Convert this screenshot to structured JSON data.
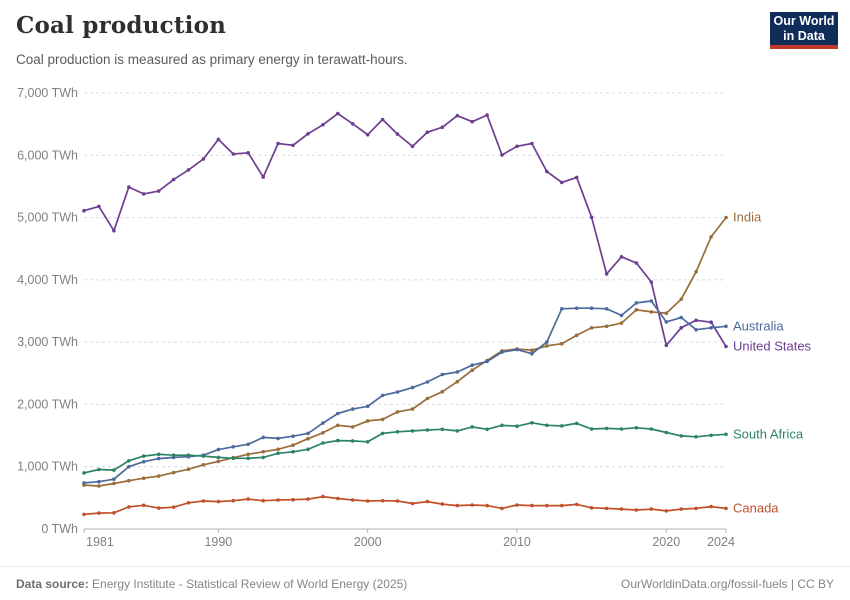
{
  "header": {
    "title": "Coal production",
    "subtitle": "Coal production is measured as primary energy in terawatt-hours."
  },
  "logo": {
    "line1": "Our World",
    "line2": "in Data"
  },
  "footer": {
    "source_label": "Data source:",
    "source_text": " Energy Institute - Statistical Review of World Energy (2025)",
    "right_text": "OurWorldinData.org/fossil-fuels | CC BY"
  },
  "chart_data": {
    "type": "line",
    "title": "Coal production",
    "unit": "TWh",
    "xlabel": "",
    "ylabel": "",
    "ylim": [
      0,
      7000
    ],
    "xlim": [
      1981,
      2024
    ],
    "grid": "horizontal-dashed",
    "legend_position": "right-end-labels",
    "x": [
      1981,
      1982,
      1983,
      1984,
      1985,
      1986,
      1987,
      1988,
      1989,
      1990,
      1991,
      1992,
      1993,
      1994,
      1995,
      1996,
      1997,
      1998,
      1999,
      2000,
      2001,
      2002,
      2003,
      2004,
      2005,
      2006,
      2007,
      2008,
      2009,
      2010,
      2011,
      2012,
      2013,
      2014,
      2015,
      2016,
      2017,
      2018,
      2019,
      2020,
      2021,
      2022,
      2023,
      2024
    ],
    "x_ticks": [
      {
        "value": 1981,
        "label": "1981"
      },
      {
        "value": 1990,
        "label": "1990"
      },
      {
        "value": 2000,
        "label": "2000"
      },
      {
        "value": 2010,
        "label": "2010"
      },
      {
        "value": 2020,
        "label": "2020"
      },
      {
        "value": 2024,
        "label": "2024"
      }
    ],
    "y_ticks": [
      {
        "value": 0,
        "label": "0 TWh"
      },
      {
        "value": 1000,
        "label": "1,000 TWh"
      },
      {
        "value": 2000,
        "label": "2,000 TWh"
      },
      {
        "value": 3000,
        "label": "3,000 TWh"
      },
      {
        "value": 4000,
        "label": "4,000 TWh"
      },
      {
        "value": 5000,
        "label": "5,000 TWh"
      },
      {
        "value": 6000,
        "label": "6,000 TWh"
      },
      {
        "value": 7000,
        "label": "7,000 TWh"
      }
    ],
    "series": [
      {
        "name": "United States",
        "color": "#6D3E91",
        "values": [
          5110,
          5180,
          4790,
          5490,
          5380,
          5425,
          5610,
          5765,
          5940,
          6255,
          6020,
          6040,
          5650,
          6190,
          6160,
          6345,
          6490,
          6670,
          6505,
          6330,
          6575,
          6340,
          6145,
          6370,
          6450,
          6635,
          6540,
          6645,
          6005,
          6145,
          6190,
          5740,
          5565,
          5645,
          5005,
          4095,
          4370,
          4270,
          3965,
          2950,
          3230,
          3350,
          3320,
          2930
        ]
      },
      {
        "name": "India",
        "color": "#996D39",
        "values": [
          705,
          690,
          730,
          775,
          815,
          850,
          905,
          960,
          1030,
          1085,
          1145,
          1200,
          1240,
          1280,
          1345,
          1450,
          1545,
          1665,
          1640,
          1735,
          1760,
          1880,
          1925,
          2095,
          2205,
          2365,
          2550,
          2705,
          2860,
          2890,
          2870,
          2940,
          2975,
          3110,
          3230,
          3255,
          3305,
          3520,
          3485,
          3465,
          3690,
          4130,
          4690,
          5000
        ]
      },
      {
        "name": "Australia",
        "color": "#4C6A9C",
        "values": [
          740,
          760,
          800,
          1000,
          1080,
          1130,
          1150,
          1160,
          1185,
          1275,
          1320,
          1360,
          1470,
          1455,
          1490,
          1535,
          1700,
          1855,
          1925,
          1970,
          2145,
          2200,
          2270,
          2360,
          2480,
          2520,
          2630,
          2690,
          2840,
          2880,
          2815,
          3000,
          3535,
          3545,
          3545,
          3535,
          3430,
          3630,
          3660,
          3325,
          3395,
          3200,
          3230,
          3255
        ]
      },
      {
        "name": "South Africa",
        "color": "#2C8465",
        "values": [
          900,
          955,
          945,
          1095,
          1170,
          1200,
          1185,
          1185,
          1170,
          1150,
          1135,
          1135,
          1150,
          1215,
          1240,
          1280,
          1380,
          1420,
          1415,
          1400,
          1535,
          1560,
          1575,
          1590,
          1600,
          1575,
          1640,
          1600,
          1665,
          1650,
          1705,
          1665,
          1655,
          1695,
          1605,
          1615,
          1605,
          1625,
          1605,
          1550,
          1495,
          1480,
          1505,
          1520
        ]
      },
      {
        "name": "Canada",
        "color": "#C1512A",
        "values": [
          235,
          255,
          260,
          355,
          380,
          335,
          350,
          420,
          450,
          440,
          455,
          480,
          455,
          465,
          470,
          480,
          520,
          490,
          465,
          450,
          455,
          450,
          410,
          440,
          400,
          375,
          385,
          375,
          330,
          385,
          375,
          375,
          375,
          395,
          340,
          330,
          320,
          305,
          320,
          290,
          320,
          330,
          360,
          330
        ]
      }
    ]
  }
}
